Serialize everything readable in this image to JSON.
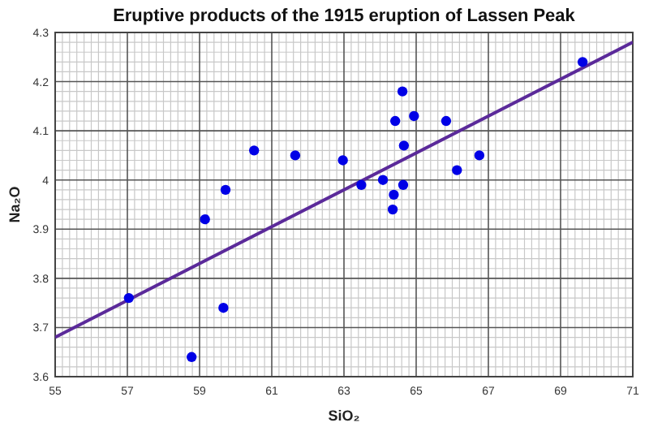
{
  "chart_data": {
    "type": "scatter",
    "title": "Eruptive products of the 1915 eruption of Lassen Peak",
    "xlabel": "SiO₂",
    "ylabel": "Na₂O",
    "xlim": [
      55,
      71
    ],
    "xticks": [
      55,
      57,
      59,
      61,
      63,
      65,
      67,
      69,
      71
    ],
    "ylim": [
      3.6,
      4.3
    ],
    "yticks": [
      3.6,
      3.7,
      3.8,
      3.9,
      4,
      4.1,
      4.2,
      4.3
    ],
    "grid": true,
    "series": [
      {
        "marker": "circle",
        "color": "#0000e6",
        "x": [
          57.04,
          58.78,
          59.15,
          59.66,
          59.72,
          60.51,
          61.65,
          62.97,
          63.48,
          64.08,
          64.35,
          64.38,
          64.42,
          64.62,
          64.66,
          64.64,
          64.94,
          65.83,
          66.13,
          66.75,
          69.61
        ],
        "values": [
          3.76,
          3.64,
          3.92,
          3.74,
          3.98,
          4.06,
          4.05,
          4.04,
          3.99,
          4.0,
          3.94,
          3.97,
          4.12,
          4.18,
          4.07,
          3.99,
          4.13,
          4.12,
          4.02,
          4.05,
          4.24
        ]
      },
      {
        "type": "line",
        "marker": "none",
        "color": "#5b2a9a",
        "x": [
          55,
          71
        ],
        "values": [
          3.68,
          4.28
        ]
      }
    ]
  }
}
